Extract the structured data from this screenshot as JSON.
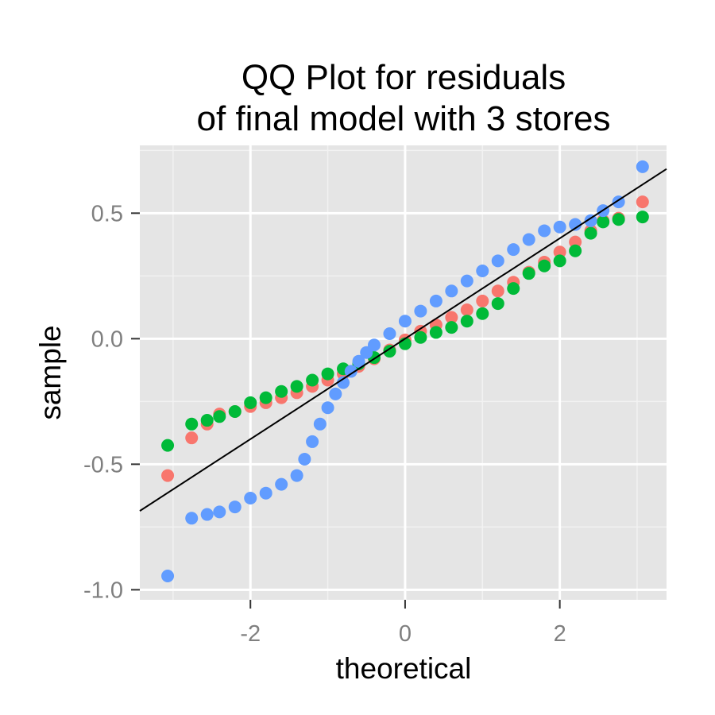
{
  "chart_data": {
    "type": "scatter",
    "title_lines": [
      "QQ Plot for residuals",
      "of final model with 3 stores"
    ],
    "xlabel": "theoretical",
    "ylabel": "sample",
    "xlim": [
      -3.43,
      3.38
    ],
    "ylim": [
      -1.04,
      0.77
    ],
    "x_ticks": [
      -2,
      0,
      2
    ],
    "x_tick_labels": [
      "-2",
      "0",
      "2"
    ],
    "y_ticks": [
      -1.0,
      -0.5,
      0.0,
      0.5
    ],
    "y_tick_labels": [
      "-1.0",
      "-0.5",
      "0.0",
      "0.5"
    ],
    "grid": true,
    "legend": "none",
    "colors": {
      "panel": "#E5E5E5",
      "grid": "#FFFFFF",
      "tick_text": "#7F7F7F",
      "line": "#000000",
      "series": [
        "#F8766D",
        "#00BA38",
        "#619CFF"
      ]
    },
    "reference_line": {
      "intercept": 0.0,
      "slope": 0.2
    },
    "series": [
      {
        "color": "#F8766D",
        "points": [
          [
            -3.07,
            -0.545
          ],
          [
            -2.76,
            -0.395
          ],
          [
            -2.56,
            -0.34
          ],
          [
            -2.4,
            -0.3
          ],
          [
            -2.2,
            -0.29
          ],
          [
            -2.0,
            -0.27
          ],
          [
            -1.8,
            -0.255
          ],
          [
            -1.6,
            -0.235
          ],
          [
            -1.4,
            -0.215
          ],
          [
            -1.2,
            -0.19
          ],
          [
            -1.0,
            -0.165
          ],
          [
            -0.8,
            -0.14
          ],
          [
            -0.6,
            -0.11
          ],
          [
            -0.4,
            -0.08
          ],
          [
            -0.2,
            -0.045
          ],
          [
            0.0,
            -0.005
          ],
          [
            0.2,
            0.03
          ],
          [
            0.4,
            0.055
          ],
          [
            0.6,
            0.085
          ],
          [
            0.8,
            0.115
          ],
          [
            1.0,
            0.15
          ],
          [
            1.2,
            0.19
          ],
          [
            1.4,
            0.225
          ],
          [
            1.6,
            0.265
          ],
          [
            1.8,
            0.305
          ],
          [
            2.0,
            0.345
          ],
          [
            2.2,
            0.385
          ],
          [
            2.4,
            0.43
          ],
          [
            2.56,
            0.47
          ],
          [
            2.76,
            0.48
          ],
          [
            3.07,
            0.545
          ]
        ]
      },
      {
        "color": "#00BA38",
        "points": [
          [
            -3.07,
            -0.425
          ],
          [
            -2.76,
            -0.34
          ],
          [
            -2.56,
            -0.325
          ],
          [
            -2.4,
            -0.31
          ],
          [
            -2.2,
            -0.29
          ],
          [
            -2.0,
            -0.255
          ],
          [
            -1.8,
            -0.235
          ],
          [
            -1.6,
            -0.21
          ],
          [
            -1.4,
            -0.19
          ],
          [
            -1.2,
            -0.165
          ],
          [
            -1.0,
            -0.14
          ],
          [
            -0.8,
            -0.12
          ],
          [
            -0.6,
            -0.1
          ],
          [
            -0.4,
            -0.075
          ],
          [
            -0.2,
            -0.05
          ],
          [
            0.0,
            -0.02
          ],
          [
            0.2,
            0.005
          ],
          [
            0.4,
            0.025
          ],
          [
            0.6,
            0.045
          ],
          [
            0.8,
            0.07
          ],
          [
            1.0,
            0.1
          ],
          [
            1.2,
            0.14
          ],
          [
            1.4,
            0.2
          ],
          [
            1.6,
            0.26
          ],
          [
            1.8,
            0.29
          ],
          [
            2.0,
            0.31
          ],
          [
            2.2,
            0.35
          ],
          [
            2.4,
            0.42
          ],
          [
            2.56,
            0.465
          ],
          [
            2.76,
            0.475
          ],
          [
            3.07,
            0.485
          ]
        ]
      },
      {
        "color": "#619CFF",
        "points": [
          [
            -3.07,
            -0.945
          ],
          [
            -2.76,
            -0.715
          ],
          [
            -2.56,
            -0.7
          ],
          [
            -2.4,
            -0.69
          ],
          [
            -2.2,
            -0.67
          ],
          [
            -2.0,
            -0.635
          ],
          [
            -1.8,
            -0.615
          ],
          [
            -1.6,
            -0.58
          ],
          [
            -1.4,
            -0.545
          ],
          [
            -1.3,
            -0.48
          ],
          [
            -1.2,
            -0.41
          ],
          [
            -1.1,
            -0.34
          ],
          [
            -1.0,
            -0.275
          ],
          [
            -0.9,
            -0.22
          ],
          [
            -0.8,
            -0.175
          ],
          [
            -0.7,
            -0.13
          ],
          [
            -0.6,
            -0.09
          ],
          [
            -0.5,
            -0.055
          ],
          [
            -0.4,
            -0.025
          ],
          [
            -0.2,
            0.02
          ],
          [
            0.0,
            0.07
          ],
          [
            0.2,
            0.11
          ],
          [
            0.4,
            0.15
          ],
          [
            0.6,
            0.19
          ],
          [
            0.8,
            0.23
          ],
          [
            1.0,
            0.27
          ],
          [
            1.2,
            0.31
          ],
          [
            1.4,
            0.355
          ],
          [
            1.6,
            0.395
          ],
          [
            1.8,
            0.43
          ],
          [
            2.0,
            0.445
          ],
          [
            2.2,
            0.455
          ],
          [
            2.4,
            0.47
          ],
          [
            2.56,
            0.51
          ],
          [
            2.76,
            0.545
          ],
          [
            3.07,
            0.685
          ]
        ]
      }
    ]
  }
}
